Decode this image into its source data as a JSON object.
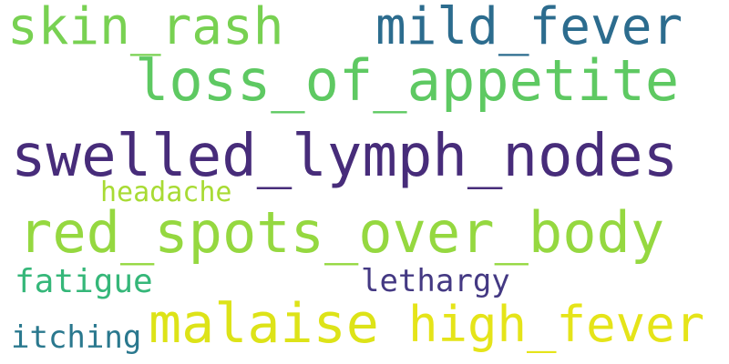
{
  "words": [
    {
      "text": "skin_rash",
      "color": "#78d152"
    },
    {
      "text": "mild_fever",
      "color": "#2c6c8e"
    },
    {
      "text": "loss_of_appetite",
      "color": "#5ec962"
    },
    {
      "text": "swelled_lymph_nodes",
      "color": "#472c7a"
    },
    {
      "text": "headache",
      "color": "#a8db34"
    },
    {
      "text": "red_spots_over_body",
      "color": "#95d840"
    },
    {
      "text": "fatigue",
      "color": "#35b779"
    },
    {
      "text": "lethargy",
      "color": "#443983"
    },
    {
      "text": "malaise",
      "color": "#dde318"
    },
    {
      "text": "high_fever",
      "color": "#e5e419"
    },
    {
      "text": "itching",
      "color": "#2a788e"
    }
  ]
}
